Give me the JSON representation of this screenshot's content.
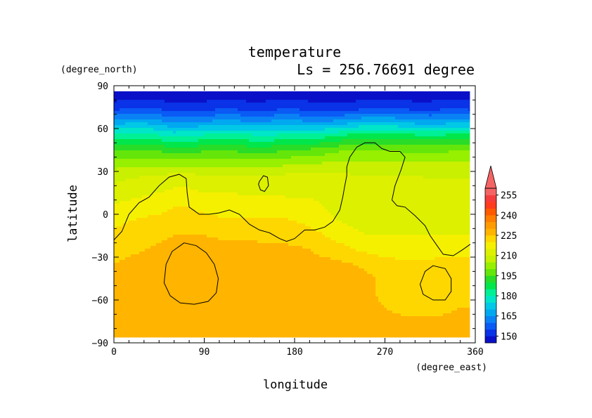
{
  "chart_data": {
    "type": "heatmap",
    "title": "temperature",
    "subtitle": "Ls = 256.76691 degree",
    "xlabel": "longitude",
    "ylabel": "latitude",
    "x_unit": "(degree_east)",
    "y_unit": "(degree_north)",
    "xlim": [
      0,
      360
    ],
    "ylim": [
      -90,
      90
    ],
    "x_ticks": [
      "0",
      "90",
      "180",
      "270",
      "360"
    ],
    "y_ticks": [
      "90",
      "60",
      "30",
      "0",
      "−30",
      "−60",
      "−90"
    ],
    "grid": false,
    "colorbar": {
      "placement": "right",
      "levels": [
        145,
        150,
        155,
        160,
        165,
        170,
        175,
        180,
        185,
        190,
        195,
        200,
        205,
        210,
        215,
        220,
        225,
        230,
        235,
        240,
        245,
        250,
        255,
        260
      ],
      "labels": [
        "150",
        "165",
        "180",
        "195",
        "210",
        "225",
        "240",
        "255"
      ],
      "colors": [
        "#0a10c8",
        "#0a32e6",
        "#0a5af5",
        "#0a82f5",
        "#00a8f0",
        "#00c8e6",
        "#00e6c8",
        "#00f096",
        "#00e64b",
        "#28dc28",
        "#64e60a",
        "#96f000",
        "#c8f000",
        "#dcf000",
        "#f5f000",
        "#ffd700",
        "#ffb400",
        "#ff9b00",
        "#ff7d00",
        "#ff5a00",
        "#ff3c1e",
        "#f53c3c",
        "#f56464"
      ],
      "over_color": "#f56464",
      "extend": "max"
    },
    "rows": [
      {
        "lat": 85,
        "values": [
          147,
          147,
          147,
          147,
          147,
          147,
          147,
          147,
          147,
          147,
          147,
          147,
          147,
          147,
          147,
          147,
          147,
          147,
          147,
          147,
          147,
          147,
          147,
          147,
          147
        ]
      },
      {
        "lat": 75,
        "values": [
          152,
          153,
          154,
          153,
          151,
          151,
          152,
          153,
          153,
          152,
          152,
          153,
          153,
          152,
          151,
          151,
          152,
          153,
          154,
          153,
          152,
          152,
          153,
          153,
          152
        ]
      },
      {
        "lat": 65,
        "values": [
          167,
          168,
          168,
          166,
          163,
          163,
          165,
          166,
          166,
          165,
          165,
          166,
          166,
          165,
          165,
          166,
          168,
          170,
          170,
          168,
          167,
          166,
          167,
          168,
          167
        ]
      },
      {
        "lat": 55,
        "values": [
          182,
          183,
          183,
          181,
          179,
          180,
          181,
          182,
          182,
          181,
          180,
          181,
          182,
          182,
          183,
          185,
          187,
          188,
          188,
          187,
          186,
          186,
          186,
          187,
          186
        ]
      },
      {
        "lat": 45,
        "values": [
          194,
          195,
          195,
          194,
          193,
          193,
          194,
          194,
          194,
          193,
          193,
          194,
          195,
          196,
          197,
          199,
          200,
          200,
          200,
          199,
          199,
          199,
          199,
          200,
          199
        ]
      },
      {
        "lat": 35,
        "values": [
          203,
          204,
          204,
          204,
          204,
          204,
          204,
          204,
          204,
          203,
          203,
          204,
          205,
          205,
          206,
          207,
          207,
          207,
          207,
          207,
          206,
          206,
          206,
          206,
          206
        ]
      },
      {
        "lat": 25,
        "values": [
          209,
          210,
          211,
          212,
          213,
          213,
          212,
          212,
          212,
          211,
          211,
          212,
          213,
          213,
          213,
          212,
          211,
          211,
          211,
          211,
          211,
          210,
          210,
          210,
          210
        ]
      },
      {
        "lat": 15,
        "values": [
          212,
          213,
          214,
          215,
          216,
          216,
          215,
          215,
          215,
          214,
          214,
          214,
          214,
          214,
          213,
          212,
          211,
          211,
          211,
          211,
          211,
          211,
          211,
          211,
          211
        ]
      },
      {
        "lat": 5,
        "values": [
          216,
          217,
          218,
          219,
          220,
          220,
          219,
          218,
          218,
          218,
          218,
          218,
          217,
          217,
          215,
          213,
          212,
          212,
          212,
          212,
          212,
          212,
          212,
          212,
          212
        ]
      },
      {
        "lat": -5,
        "values": [
          219,
          220,
          221,
          221,
          222,
          222,
          221,
          221,
          221,
          221,
          221,
          221,
          220,
          219,
          217,
          215,
          214,
          213,
          213,
          213,
          213,
          213,
          213,
          213,
          213
        ]
      },
      {
        "lat": -15,
        "values": [
          221,
          222,
          223,
          224,
          225,
          225,
          225,
          224,
          224,
          224,
          224,
          224,
          223,
          222,
          220,
          218,
          216,
          215,
          215,
          215,
          215,
          215,
          215,
          215,
          215
        ]
      },
      {
        "lat": -25,
        "values": [
          223,
          224,
          225,
          226,
          227,
          228,
          228,
          228,
          227,
          227,
          226,
          226,
          226,
          225,
          223,
          222,
          220,
          219,
          218,
          218,
          218,
          218,
          218,
          218,
          218
        ]
      },
      {
        "lat": -35,
        "values": [
          225,
          226,
          227,
          228,
          229,
          229,
          229,
          229,
          229,
          228,
          228,
          228,
          227,
          227,
          227,
          226,
          225,
          223,
          222,
          221,
          221,
          221,
          222,
          222,
          222
        ]
      },
      {
        "lat": -45,
        "values": [
          226,
          227,
          228,
          228,
          229,
          229,
          229,
          229,
          229,
          228,
          228,
          228,
          228,
          228,
          228,
          228,
          228,
          226,
          223,
          222,
          221,
          221,
          222,
          222,
          222
        ]
      },
      {
        "lat": -55,
        "values": [
          226,
          227,
          227,
          227,
          228,
          228,
          228,
          229,
          230,
          230,
          229,
          228,
          228,
          228,
          228,
          228,
          228,
          226,
          223,
          222,
          221,
          221,
          222,
          223,
          222
        ]
      },
      {
        "lat": -65,
        "values": [
          226,
          226,
          226,
          226,
          227,
          227,
          227,
          228,
          228,
          228,
          228,
          228,
          228,
          228,
          228,
          228,
          228,
          227,
          225,
          224,
          223,
          223,
          224,
          225,
          225
        ]
      },
      {
        "lat": -75,
        "values": [
          226,
          226,
          226,
          226,
          226,
          226,
          226,
          226,
          226,
          226,
          226,
          226,
          226,
          226,
          226,
          226,
          226,
          226,
          226,
          226,
          226,
          226,
          226,
          226,
          226
        ]
      },
      {
        "lat": -85,
        "values": [
          226,
          226,
          226,
          226,
          226,
          226,
          226,
          226,
          226,
          226,
          226,
          226,
          226,
          226,
          226,
          226,
          226,
          226,
          226,
          226,
          226,
          226,
          226,
          226,
          226
        ]
      }
    ],
    "lon_centers": [
      0,
      15,
      30,
      45,
      60,
      75,
      90,
      105,
      120,
      135,
      150,
      165,
      180,
      195,
      210,
      225,
      240,
      255,
      270,
      285,
      300,
      315,
      330,
      345,
      360
    ],
    "contours": [
      {
        "level": 210,
        "closed": false,
        "points": [
          [
            0,
            -18
          ],
          [
            8,
            -12
          ],
          [
            15,
            0
          ],
          [
            25,
            8
          ],
          [
            35,
            12
          ],
          [
            45,
            20
          ],
          [
            55,
            26
          ],
          [
            65,
            28
          ],
          [
            72,
            25
          ],
          [
            73,
            15
          ],
          [
            75,
            5
          ],
          [
            85,
            0
          ],
          [
            95,
            0
          ],
          [
            105,
            1
          ],
          [
            115,
            3
          ],
          [
            125,
            0
          ],
          [
            135,
            -7
          ],
          [
            145,
            -11
          ],
          [
            155,
            -13
          ],
          [
            165,
            -17
          ],
          [
            172,
            -19
          ],
          [
            180,
            -17
          ],
          [
            190,
            -11
          ],
          [
            200,
            -11
          ],
          [
            210,
            -9
          ],
          [
            218,
            -5
          ],
          [
            225,
            3
          ],
          [
            228,
            12
          ],
          [
            230,
            20
          ],
          [
            232,
            27
          ],
          [
            232,
            33
          ],
          [
            235,
            40
          ],
          [
            242,
            47
          ],
          [
            250,
            50
          ],
          [
            260,
            50
          ],
          [
            267,
            46
          ],
          [
            275,
            44
          ],
          [
            285,
            44
          ],
          [
            290,
            40
          ],
          [
            286,
            31
          ],
          [
            280,
            20
          ],
          [
            277,
            10
          ],
          [
            282,
            6
          ],
          [
            290,
            5
          ],
          [
            300,
            -1
          ],
          [
            310,
            -8
          ],
          [
            315,
            -15
          ],
          [
            322,
            -22
          ],
          [
            328,
            -28
          ],
          [
            338,
            -29
          ],
          [
            347,
            -25
          ],
          [
            355,
            -21
          ]
        ]
      },
      {
        "level": 210,
        "closed": true,
        "points": [
          [
            145,
            23
          ],
          [
            149,
            27
          ],
          [
            153,
            26
          ],
          [
            154,
            20
          ],
          [
            150,
            16
          ],
          [
            146,
            17
          ],
          [
            144,
            21
          ]
        ]
      },
      {
        "level": 225,
        "closed": true,
        "points": [
          [
            70,
            -20
          ],
          [
            82,
            -22
          ],
          [
            92,
            -27
          ],
          [
            100,
            -35
          ],
          [
            104,
            -45
          ],
          [
            102,
            -55
          ],
          [
            94,
            -61
          ],
          [
            80,
            -63
          ],
          [
            66,
            -62
          ],
          [
            56,
            -57
          ],
          [
            50,
            -48
          ],
          [
            52,
            -35
          ],
          [
            58,
            -26
          ]
        ]
      },
      {
        "level": 225,
        "closed": true,
        "points": [
          [
            318,
            -36
          ],
          [
            330,
            -38
          ],
          [
            336,
            -45
          ],
          [
            336,
            -54
          ],
          [
            330,
            -60
          ],
          [
            318,
            -60
          ],
          [
            308,
            -56
          ],
          [
            305,
            -49
          ],
          [
            310,
            -40
          ]
        ]
      }
    ]
  }
}
